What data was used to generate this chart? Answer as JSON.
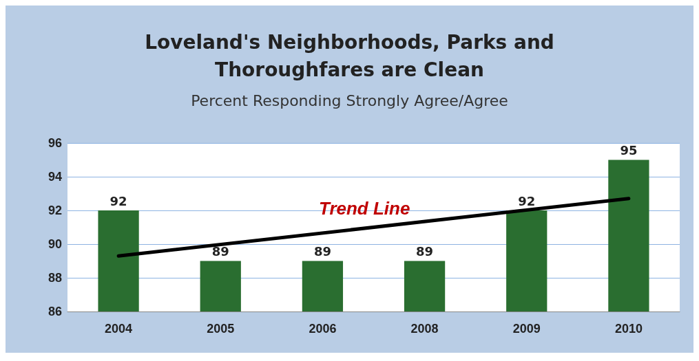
{
  "chart_data": {
    "type": "bar",
    "title": "Loveland's Neighborhoods, Parks and\nThoroughfares are Clean",
    "subtitle": "Percent Responding Strongly Agree/Agree",
    "categories": [
      "2004",
      "2005",
      "2006",
      "2008",
      "2009",
      "2010"
    ],
    "series": [
      {
        "color": "#2a6e30",
        "values": [
          92,
          89,
          89,
          89,
          92,
          95
        ],
        "value_labels": [
          "92",
          "89",
          "89",
          "89",
          "92",
          "95"
        ]
      },
      {
        "type": "line",
        "color": "#000000",
        "values": [
          89.3,
          null,
          null,
          null,
          null,
          92.7
        ]
      }
    ],
    "annotations": [
      "Trend Line"
    ],
    "ylim": [
      86,
      96
    ],
    "yticks": [
      86,
      88,
      90,
      92,
      94,
      96
    ],
    "grid": "y",
    "marker": "none"
  }
}
